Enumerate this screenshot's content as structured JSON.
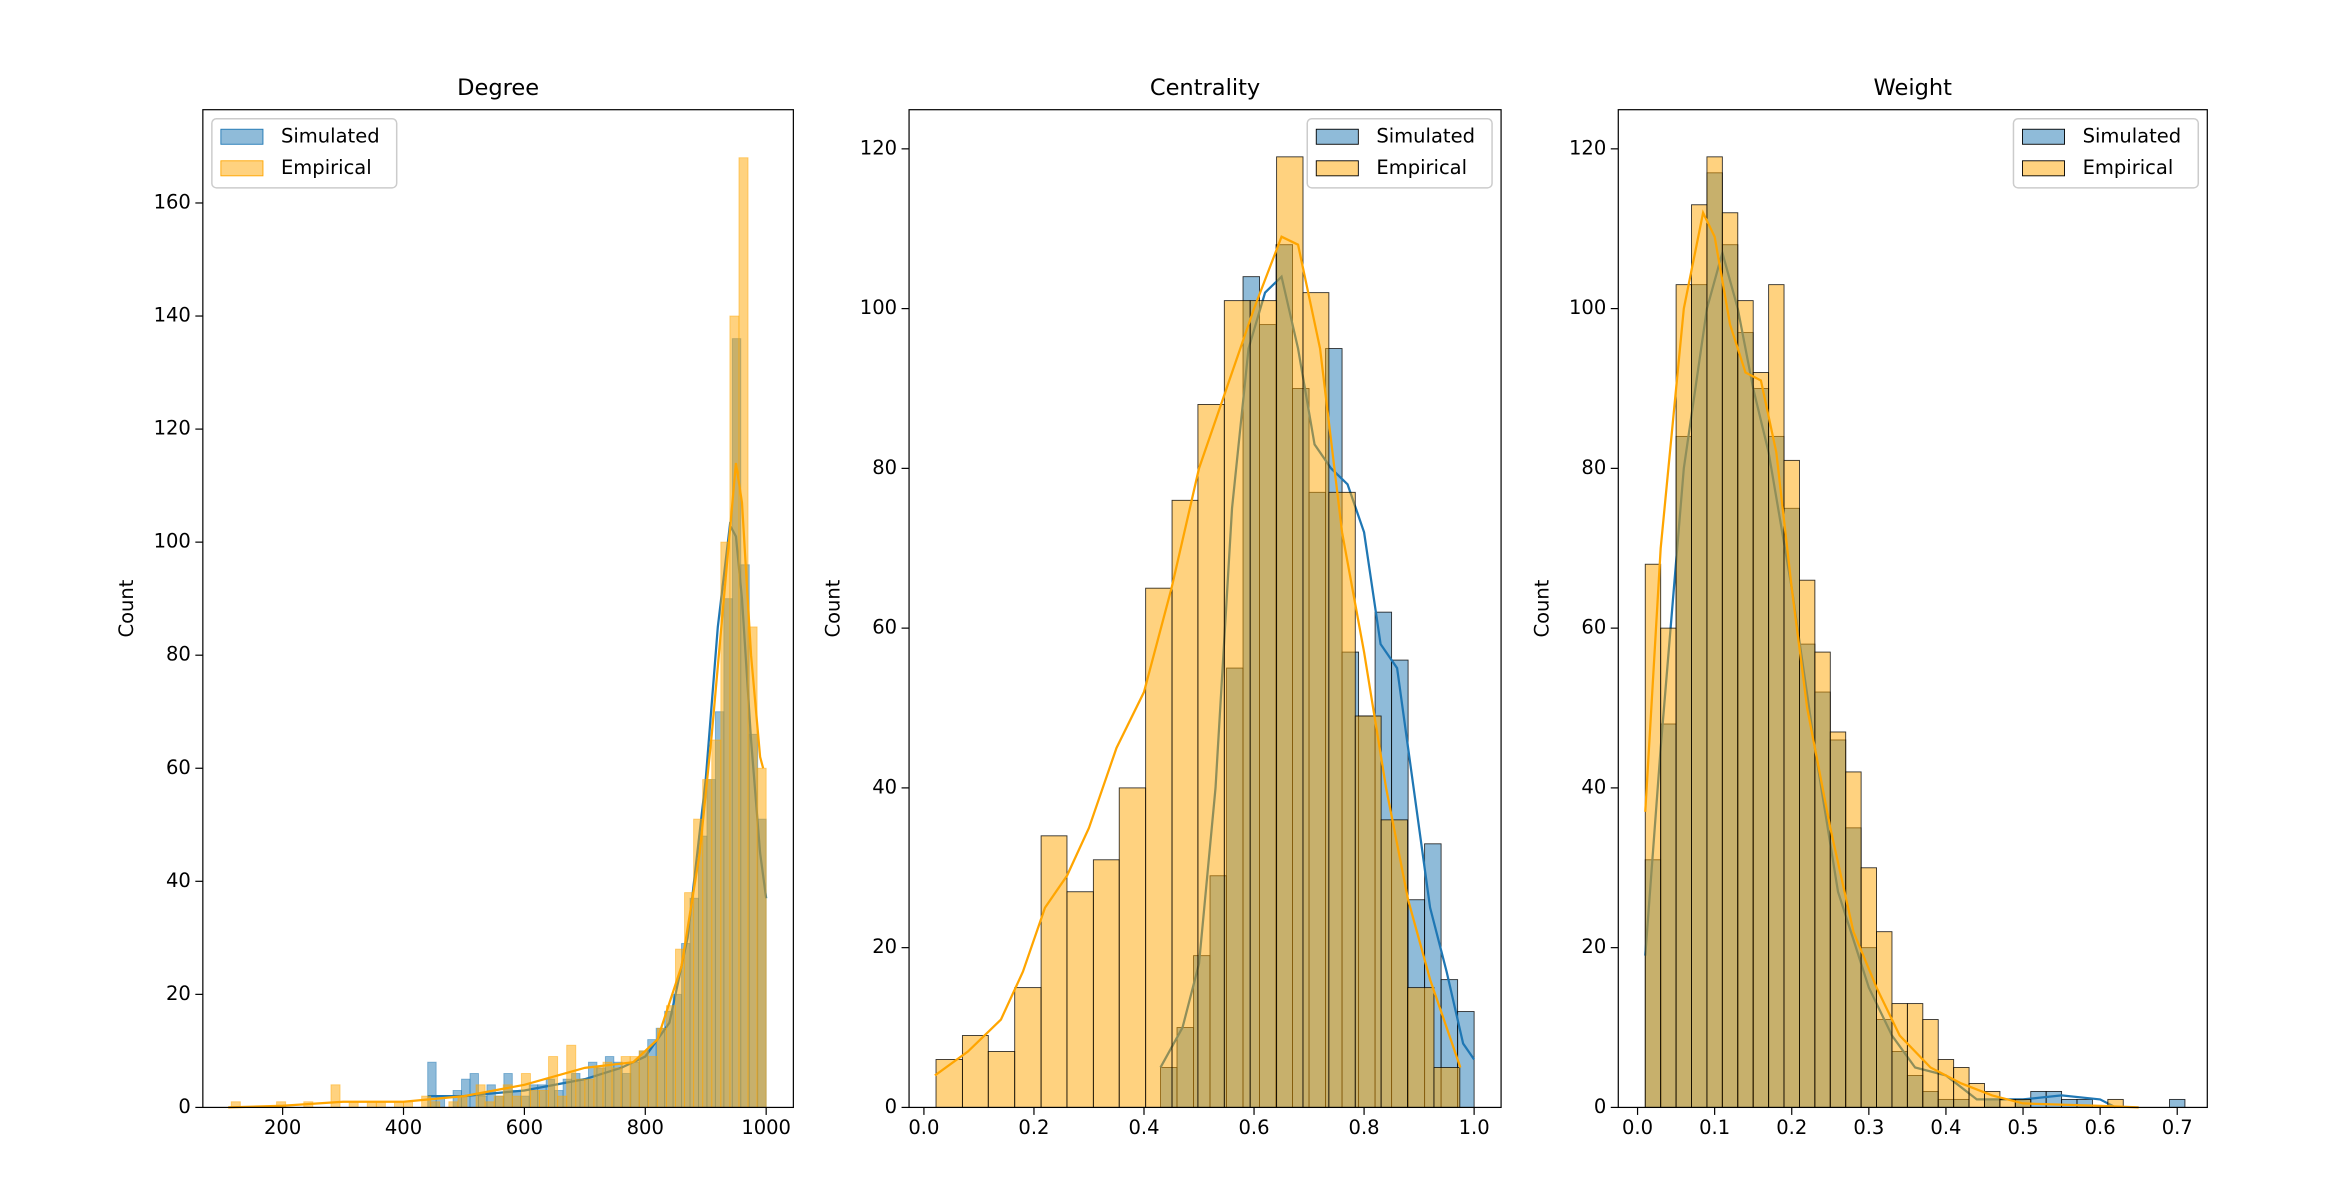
{
  "chart_data": [
    {
      "type": "histogram",
      "title": "Degree",
      "ylabel": "Count",
      "legend": "upper left",
      "edgecolor": "series",
      "xlim": [
        68,
        1045
      ],
      "ylim": [
        0,
        176.5
      ],
      "xticks": [
        200,
        400,
        600,
        800,
        1000
      ],
      "yticks": [
        0,
        20,
        40,
        60,
        80,
        100,
        120,
        140,
        160
      ],
      "series": [
        {
          "name": "Simulated",
          "color": "#1f77b4",
          "bins": [
            440,
            454,
            468,
            482,
            496,
            510,
            524,
            538,
            552,
            566,
            580,
            594,
            608,
            622,
            636,
            650,
            664,
            678,
            692,
            706,
            720,
            734,
            748,
            762,
            776,
            790,
            804,
            818,
            832,
            846,
            860,
            874,
            888,
            902,
            916,
            930,
            944,
            958,
            972,
            986,
            1000
          ],
          "values": [
            8,
            2,
            0,
            3,
            5,
            6,
            2,
            4,
            2,
            6,
            3,
            2,
            4,
            4,
            5,
            3,
            5,
            6,
            5,
            8,
            7,
            9,
            8,
            6,
            8,
            10,
            12,
            14,
            17,
            20,
            29,
            37,
            48,
            58,
            70,
            90,
            136,
            96,
            66,
            51
          ],
          "kde": {
            "x": [
              440,
              500,
              600,
              700,
              760,
              800,
              840,
              870,
              900,
              920,
              940,
              950,
              960,
              975,
              990,
              1000
            ],
            "values": [
              2,
              2,
              3,
              5,
              7,
              9,
              15,
              30,
              58,
              85,
              103,
              101,
              90,
              65,
              45,
              37
            ]
          }
        },
        {
          "name": "Empirical",
          "color": "#ffa500",
          "bins": [
            115,
            130,
            145,
            160,
            175,
            190,
            205,
            220,
            235,
            250,
            265,
            280,
            295,
            310,
            325,
            340,
            355,
            370,
            385,
            400,
            415,
            430,
            445,
            460,
            475,
            490,
            505,
            520,
            535,
            550,
            565,
            580,
            595,
            610,
            625,
            640,
            655,
            670,
            685,
            700,
            715,
            730,
            745,
            760,
            775,
            790,
            805,
            820,
            835,
            850,
            865,
            880,
            895,
            910,
            925,
            940,
            955,
            970,
            985,
            1000
          ],
          "values": [
            1,
            0,
            0,
            0,
            0,
            1,
            0,
            0,
            1,
            0,
            0,
            4,
            0,
            1,
            0,
            1,
            1,
            0,
            1,
            1,
            0,
            2,
            1,
            0,
            1,
            2,
            0,
            4,
            1,
            2,
            4,
            2,
            6,
            3,
            3,
            9,
            2,
            11,
            5,
            5,
            7,
            8,
            7,
            9,
            9,
            10,
            9,
            14,
            18,
            28,
            38,
            51,
            58,
            65,
            100,
            140,
            168,
            85,
            60
          ],
          "kde": {
            "x": [
              110,
              200,
              300,
              400,
              500,
              600,
              700,
              780,
              820,
              860,
              890,
              910,
              930,
              950,
              960,
              975,
              990,
              995
            ],
            "values": [
              0,
              0.3,
              1,
              1,
              2,
              4,
              7,
              8,
              12,
              25,
              45,
              66,
              90,
              114,
              107,
              80,
              62,
              60
            ]
          }
        }
      ]
    },
    {
      "type": "histogram",
      "title": "Centrality",
      "ylabel": "Count",
      "legend": "upper right",
      "edgecolor": "#000000",
      "xlim": [
        -0.027,
        1.049
      ],
      "ylim": [
        0,
        124.9
      ],
      "xticks": [
        {
          "value": 0,
          "label": "0.0"
        },
        0.2,
        0.4,
        0.6,
        0.8,
        {
          "value": 1,
          "label": "1.0"
        }
      ],
      "yticks": [
        0,
        20,
        40,
        60,
        80,
        100,
        120
      ],
      "series": [
        {
          "name": "Simulated",
          "color": "#1f77b4",
          "bins": [
            0.43,
            0.46,
            0.49,
            0.52,
            0.55,
            0.58,
            0.61,
            0.64,
            0.67,
            0.7,
            0.73,
            0.76,
            0.79,
            0.82,
            0.85,
            0.88,
            0.91,
            0.94,
            0.97,
            1.0
          ],
          "values": [
            5,
            10,
            19,
            29,
            55,
            104,
            98,
            108,
            90,
            77,
            95,
            57,
            49,
            62,
            56,
            26,
            33,
            16,
            12
          ],
          "kde": {
            "x": [
              0.43,
              0.47,
              0.5,
              0.53,
              0.56,
              0.59,
              0.62,
              0.65,
              0.68,
              0.71,
              0.74,
              0.77,
              0.8,
              0.83,
              0.86,
              0.89,
              0.92,
              0.95,
              0.98,
              1.0
            ],
            "values": [
              5,
              10,
              18,
              40,
              75,
              95,
              102,
              104,
              95,
              83,
              80,
              78,
              72,
              58,
              55,
              40,
              25,
              17,
              8,
              6
            ]
          }
        },
        {
          "name": "Empirical",
          "color": "#ffa500",
          "bins": [
            0.022,
            0.07,
            0.117,
            0.165,
            0.213,
            0.26,
            0.308,
            0.355,
            0.403,
            0.451,
            0.498,
            0.546,
            0.593,
            0.641,
            0.689,
            0.736,
            0.784,
            0.831,
            0.879,
            0.927,
            0.974
          ],
          "values": [
            6,
            9,
            7,
            15,
            34,
            27,
            31,
            40,
            65,
            76,
            88,
            101,
            101,
            119,
            102,
            77,
            49,
            36,
            15,
            5
          ],
          "kde": {
            "x": [
              0.02,
              0.08,
              0.14,
              0.18,
              0.22,
              0.26,
              0.3,
              0.35,
              0.4,
              0.45,
              0.5,
              0.55,
              0.6,
              0.65,
              0.68,
              0.72,
              0.76,
              0.8,
              0.84,
              0.88,
              0.92,
              0.96,
              0.975
            ],
            "values": [
              4,
              7,
              11,
              17,
              25,
              29,
              35,
              45,
              52,
              65,
              80,
              90,
              100,
              109,
              108,
              95,
              72,
              57,
              40,
              26,
              16,
              8,
              5
            ]
          }
        }
      ]
    },
    {
      "type": "histogram",
      "title": "Weight",
      "ylabel": "Count",
      "legend": "upper right",
      "edgecolor": "#000000",
      "xlim": [
        -0.025,
        0.739
      ],
      "ylim": [
        0,
        124.9
      ],
      "xticks": [
        {
          "value": 0,
          "label": "0.0"
        },
        0.1,
        0.2,
        0.3,
        0.4,
        0.5,
        0.6,
        0.7
      ],
      "yticks": [
        0,
        20,
        40,
        60,
        80,
        100,
        120
      ],
      "series": [
        {
          "name": "Simulated",
          "color": "#1f77b4",
          "bins": [
            0.01,
            0.03,
            0.05,
            0.07,
            0.09,
            0.11,
            0.13,
            0.15,
            0.17,
            0.19,
            0.21,
            0.23,
            0.25,
            0.27,
            0.29,
            0.31,
            0.33,
            0.35,
            0.37,
            0.39,
            0.41,
            0.43,
            0.45,
            0.47,
            0.49,
            0.51,
            0.53,
            0.55,
            0.57,
            0.59,
            0.61,
            0.63,
            0.65,
            0.67,
            0.69,
            0.71
          ],
          "values": [
            31,
            48,
            84,
            103,
            117,
            108,
            97,
            90,
            84,
            75,
            58,
            52,
            46,
            35,
            20,
            11,
            7,
            4,
            2,
            1,
            1,
            0,
            1,
            0,
            1,
            2,
            2,
            1,
            1,
            0,
            0,
            0,
            0,
            0,
            1
          ],
          "kde": {
            "x": [
              0.01,
              0.03,
              0.06,
              0.09,
              0.11,
              0.13,
              0.15,
              0.17,
              0.2,
              0.23,
              0.26,
              0.3,
              0.33,
              0.36,
              0.4,
              0.44,
              0.5,
              0.55,
              0.6,
              0.62
            ],
            "values": [
              19,
              45,
              80,
              100,
              107,
              100,
              90,
              82,
              65,
              45,
              27,
              15,
              9,
              5,
              4,
              1,
              1,
              1.5,
              1,
              0
            ]
          }
        },
        {
          "name": "Empirical",
          "color": "#ffa500",
          "bins": [
            0.01,
            0.03,
            0.05,
            0.07,
            0.09,
            0.11,
            0.13,
            0.15,
            0.17,
            0.19,
            0.21,
            0.23,
            0.25,
            0.27,
            0.29,
            0.31,
            0.33,
            0.35,
            0.37,
            0.39,
            0.41,
            0.43,
            0.45,
            0.47,
            0.49,
            0.51,
            0.53,
            0.55,
            0.57,
            0.59,
            0.61,
            0.63
          ],
          "values": [
            68,
            60,
            103,
            113,
            119,
            112,
            101,
            92,
            103,
            81,
            66,
            57,
            47,
            42,
            30,
            22,
            13,
            13,
            11,
            6,
            5,
            3,
            2,
            1,
            1,
            0,
            0,
            0,
            0,
            0,
            1
          ],
          "kde": {
            "x": [
              0.01,
              0.03,
              0.06,
              0.085,
              0.1,
              0.12,
              0.14,
              0.16,
              0.18,
              0.2,
              0.22,
              0.25,
              0.28,
              0.31,
              0.34,
              0.38,
              0.42,
              0.46,
              0.5,
              0.6,
              0.65
            ],
            "values": [
              37,
              70,
              100,
              112,
              109,
              98,
              92,
              91,
              82,
              65,
              50,
              35,
              22,
              15,
              9,
              5,
              3,
              1.5,
              0.5,
              0.2,
              0
            ]
          }
        }
      ]
    }
  ]
}
